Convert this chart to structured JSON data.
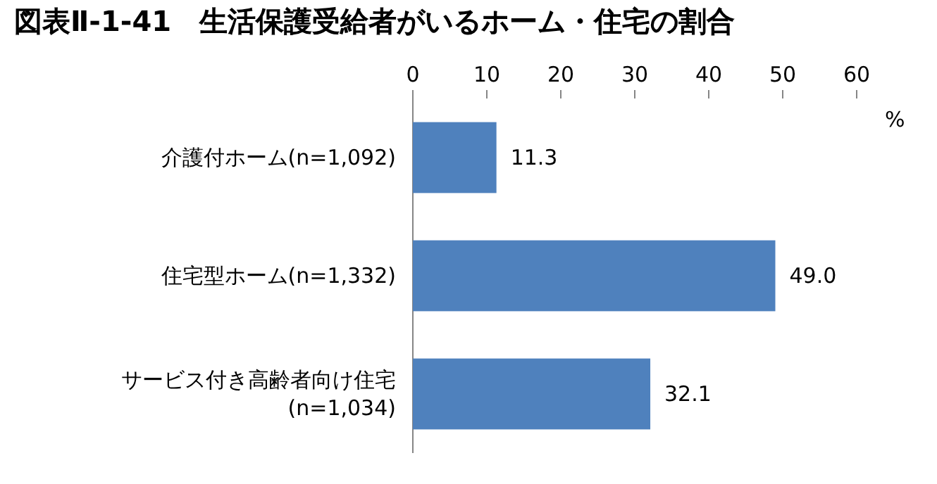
{
  "chart_data": {
    "type": "bar",
    "orientation": "horizontal",
    "title": "図表Ⅱ-1-41　生活保護受給者がいるホーム・住宅の割合",
    "xlabel": "%",
    "categories": [
      "介護付ホーム(n=1,092)",
      "住宅型ホーム(n=1,332)",
      "サービス付き高齢者向け住宅(n=1,034)"
    ],
    "values": [
      11.3,
      49.0,
      32.1
    ],
    "value_labels": [
      "11.3",
      "49.0",
      "32.1"
    ],
    "color": "#4f81bd",
    "xlim": [
      0,
      60
    ],
    "xticks": [
      0,
      10,
      20,
      30,
      40,
      50,
      60
    ]
  }
}
